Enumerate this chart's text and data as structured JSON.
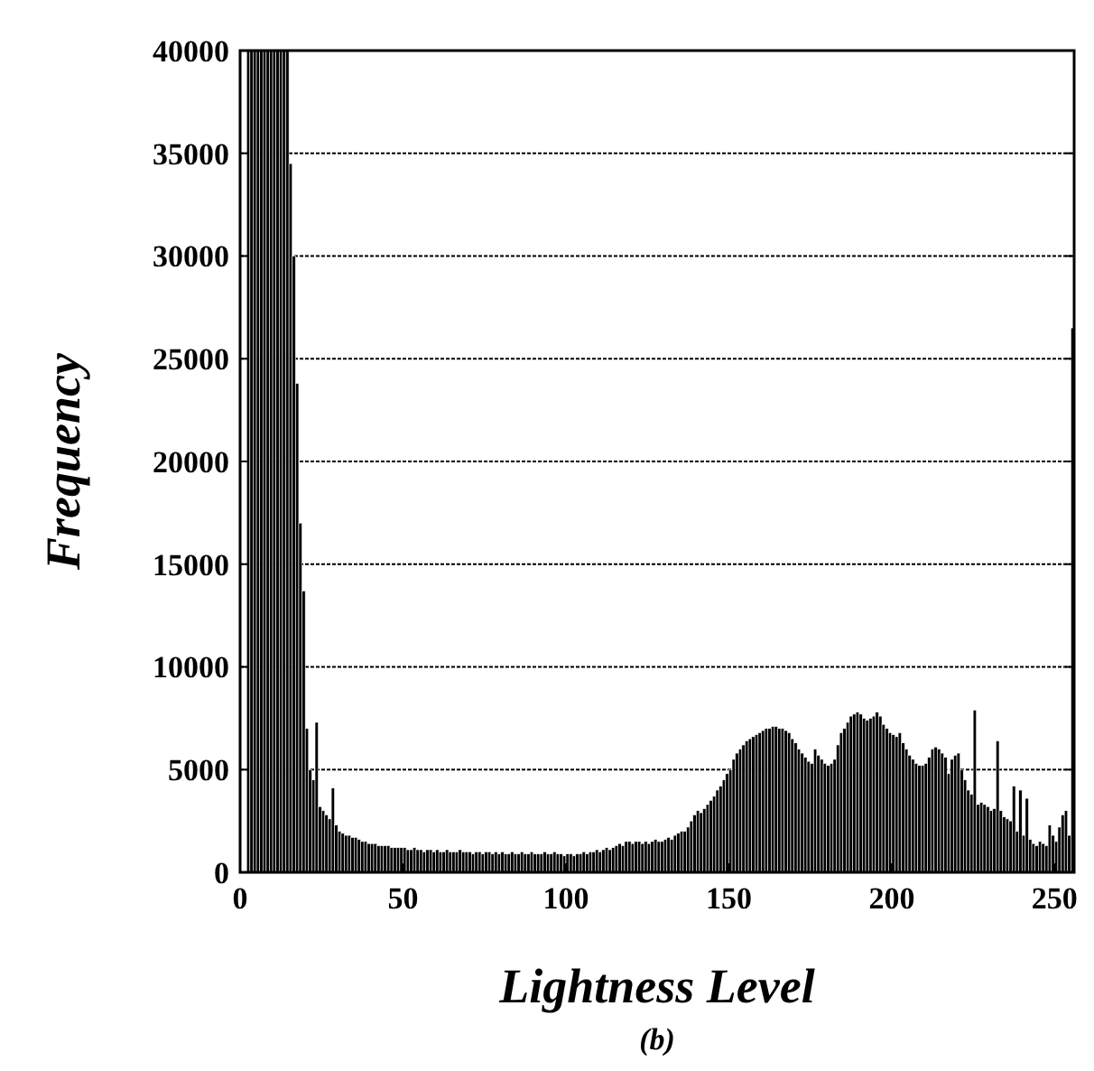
{
  "chart_data": {
    "type": "histogram",
    "xlabel": "Lightness Level",
    "ylabel": "Frequency",
    "annotations": [
      "(b)"
    ],
    "bins": [
      0,
      1,
      2,
      3,
      4,
      5,
      6,
      7,
      8,
      9,
      10,
      11,
      12,
      13,
      14,
      15,
      16,
      17,
      18,
      19,
      20,
      21,
      22,
      23,
      24,
      25,
      26,
      27,
      28,
      29,
      30,
      31,
      32,
      33,
      34,
      35,
      36,
      37,
      38,
      39,
      40,
      41,
      42,
      43,
      44,
      45,
      46,
      47,
      48,
      49,
      50,
      51,
      52,
      53,
      54,
      55,
      56,
      57,
      58,
      59,
      60,
      61,
      62,
      63,
      64,
      65,
      66,
      67,
      68,
      69,
      70,
      71,
      72,
      73,
      74,
      75,
      76,
      77,
      78,
      79,
      80,
      81,
      82,
      83,
      84,
      85,
      86,
      87,
      88,
      89,
      90,
      91,
      92,
      93,
      94,
      95,
      96,
      97,
      98,
      99,
      100,
      101,
      102,
      103,
      104,
      105,
      106,
      107,
      108,
      109,
      110,
      111,
      112,
      113,
      114,
      115,
      116,
      117,
      118,
      119,
      120,
      121,
      122,
      123,
      124,
      125,
      126,
      127,
      128,
      129,
      130,
      131,
      132,
      133,
      134,
      135,
      136,
      137,
      138,
      139,
      140,
      141,
      142,
      143,
      144,
      145,
      146,
      147,
      148,
      149,
      150,
      151,
      152,
      153,
      154,
      155,
      156,
      157,
      158,
      159,
      160,
      161,
      162,
      163,
      164,
      165,
      166,
      167,
      168,
      169,
      170,
      171,
      172,
      173,
      174,
      175,
      176,
      177,
      178,
      179,
      180,
      181,
      182,
      183,
      184,
      185,
      186,
      187,
      188,
      189,
      190,
      191,
      192,
      193,
      194,
      195,
      196,
      197,
      198,
      199,
      200,
      201,
      202,
      203,
      204,
      205,
      206,
      207,
      208,
      209,
      210,
      211,
      212,
      213,
      214,
      215,
      216,
      217,
      218,
      219,
      220,
      221,
      222,
      223,
      224,
      225,
      226,
      227,
      228,
      229,
      230,
      231,
      232,
      233,
      234,
      235,
      236,
      237,
      238,
      239,
      240,
      241,
      242,
      243,
      244,
      245,
      246,
      247,
      248,
      249,
      250,
      251,
      252,
      253,
      254,
      255,
      256
    ],
    "values": [
      0,
      0,
      40000,
      40000,
      40000,
      40000,
      40000,
      40000,
      40000,
      40000,
      40000,
      40000,
      40000,
      40000,
      40000,
      34500,
      30000,
      23800,
      17000,
      13700,
      7000,
      5000,
      4500,
      7300,
      3200,
      3000,
      2800,
      2600,
      4100,
      2300,
      2000,
      1900,
      1800,
      1800,
      1700,
      1700,
      1600,
      1500,
      1500,
      1400,
      1400,
      1400,
      1300,
      1300,
      1300,
      1300,
      1200,
      1200,
      1200,
      1200,
      1200,
      1100,
      1100,
      1200,
      1100,
      1100,
      1000,
      1100,
      1100,
      1000,
      1100,
      1000,
      1000,
      1100,
      1000,
      1000,
      1000,
      1100,
      1000,
      1000,
      1000,
      900,
      1000,
      1000,
      900,
      1000,
      1000,
      900,
      1000,
      900,
      1000,
      900,
      900,
      1000,
      900,
      900,
      1000,
      900,
      900,
      1000,
      900,
      900,
      900,
      1000,
      900,
      900,
      1000,
      900,
      900,
      800,
      900,
      900,
      800,
      900,
      900,
      1000,
      900,
      1000,
      1000,
      1100,
      1000,
      1100,
      1200,
      1100,
      1200,
      1300,
      1400,
      1300,
      1500,
      1500,
      1400,
      1500,
      1500,
      1400,
      1500,
      1400,
      1500,
      1600,
      1500,
      1500,
      1600,
      1700,
      1600,
      1800,
      1900,
      2000,
      2000,
      2200,
      2500,
      2800,
      3000,
      2900,
      3100,
      3300,
      3500,
      3700,
      4000,
      4200,
      4500,
      4800,
      5000,
      5500,
      5800,
      6000,
      6200,
      6400,
      6500,
      6600,
      6700,
      6800,
      6900,
      7000,
      7000,
      7100,
      7100,
      7000,
      7000,
      6900,
      6800,
      6500,
      6300,
      6000,
      5800,
      5600,
      5400,
      5300,
      6000,
      5700,
      5500,
      5300,
      5200,
      5300,
      5500,
      6200,
      6800,
      7000,
      7300,
      7600,
      7700,
      7800,
      7700,
      7500,
      7400,
      7500,
      7600,
      7800,
      7600,
      7200,
      7000,
      6800,
      6700,
      6600,
      6800,
      6300,
      6000,
      5700,
      5500,
      5300,
      5200,
      5200,
      5300,
      5600,
      6000,
      6100,
      6000,
      5800,
      5600,
      4800,
      5500,
      5700,
      5800,
      5000,
      4500,
      4000,
      3800,
      7900,
      3300,
      3400,
      3300,
      3200,
      3000,
      3100,
      6400,
      3000,
      2700,
      2600,
      2500,
      4200,
      2000,
      4000,
      1800,
      3600,
      1600,
      1400,
      1300,
      1500,
      1400,
      1300,
      2300,
      1800,
      1500,
      2200,
      2800,
      3000,
      1800,
      26500
    ],
    "color": "#000000",
    "xlim": [
      0,
      256
    ],
    "xticks": [
      0,
      50,
      100,
      150,
      200,
      250
    ],
    "ylim": [
      0,
      40000
    ],
    "yticks": [
      0,
      5000,
      10000,
      15000,
      20000,
      25000,
      30000,
      35000,
      40000
    ],
    "grid": "y"
  }
}
